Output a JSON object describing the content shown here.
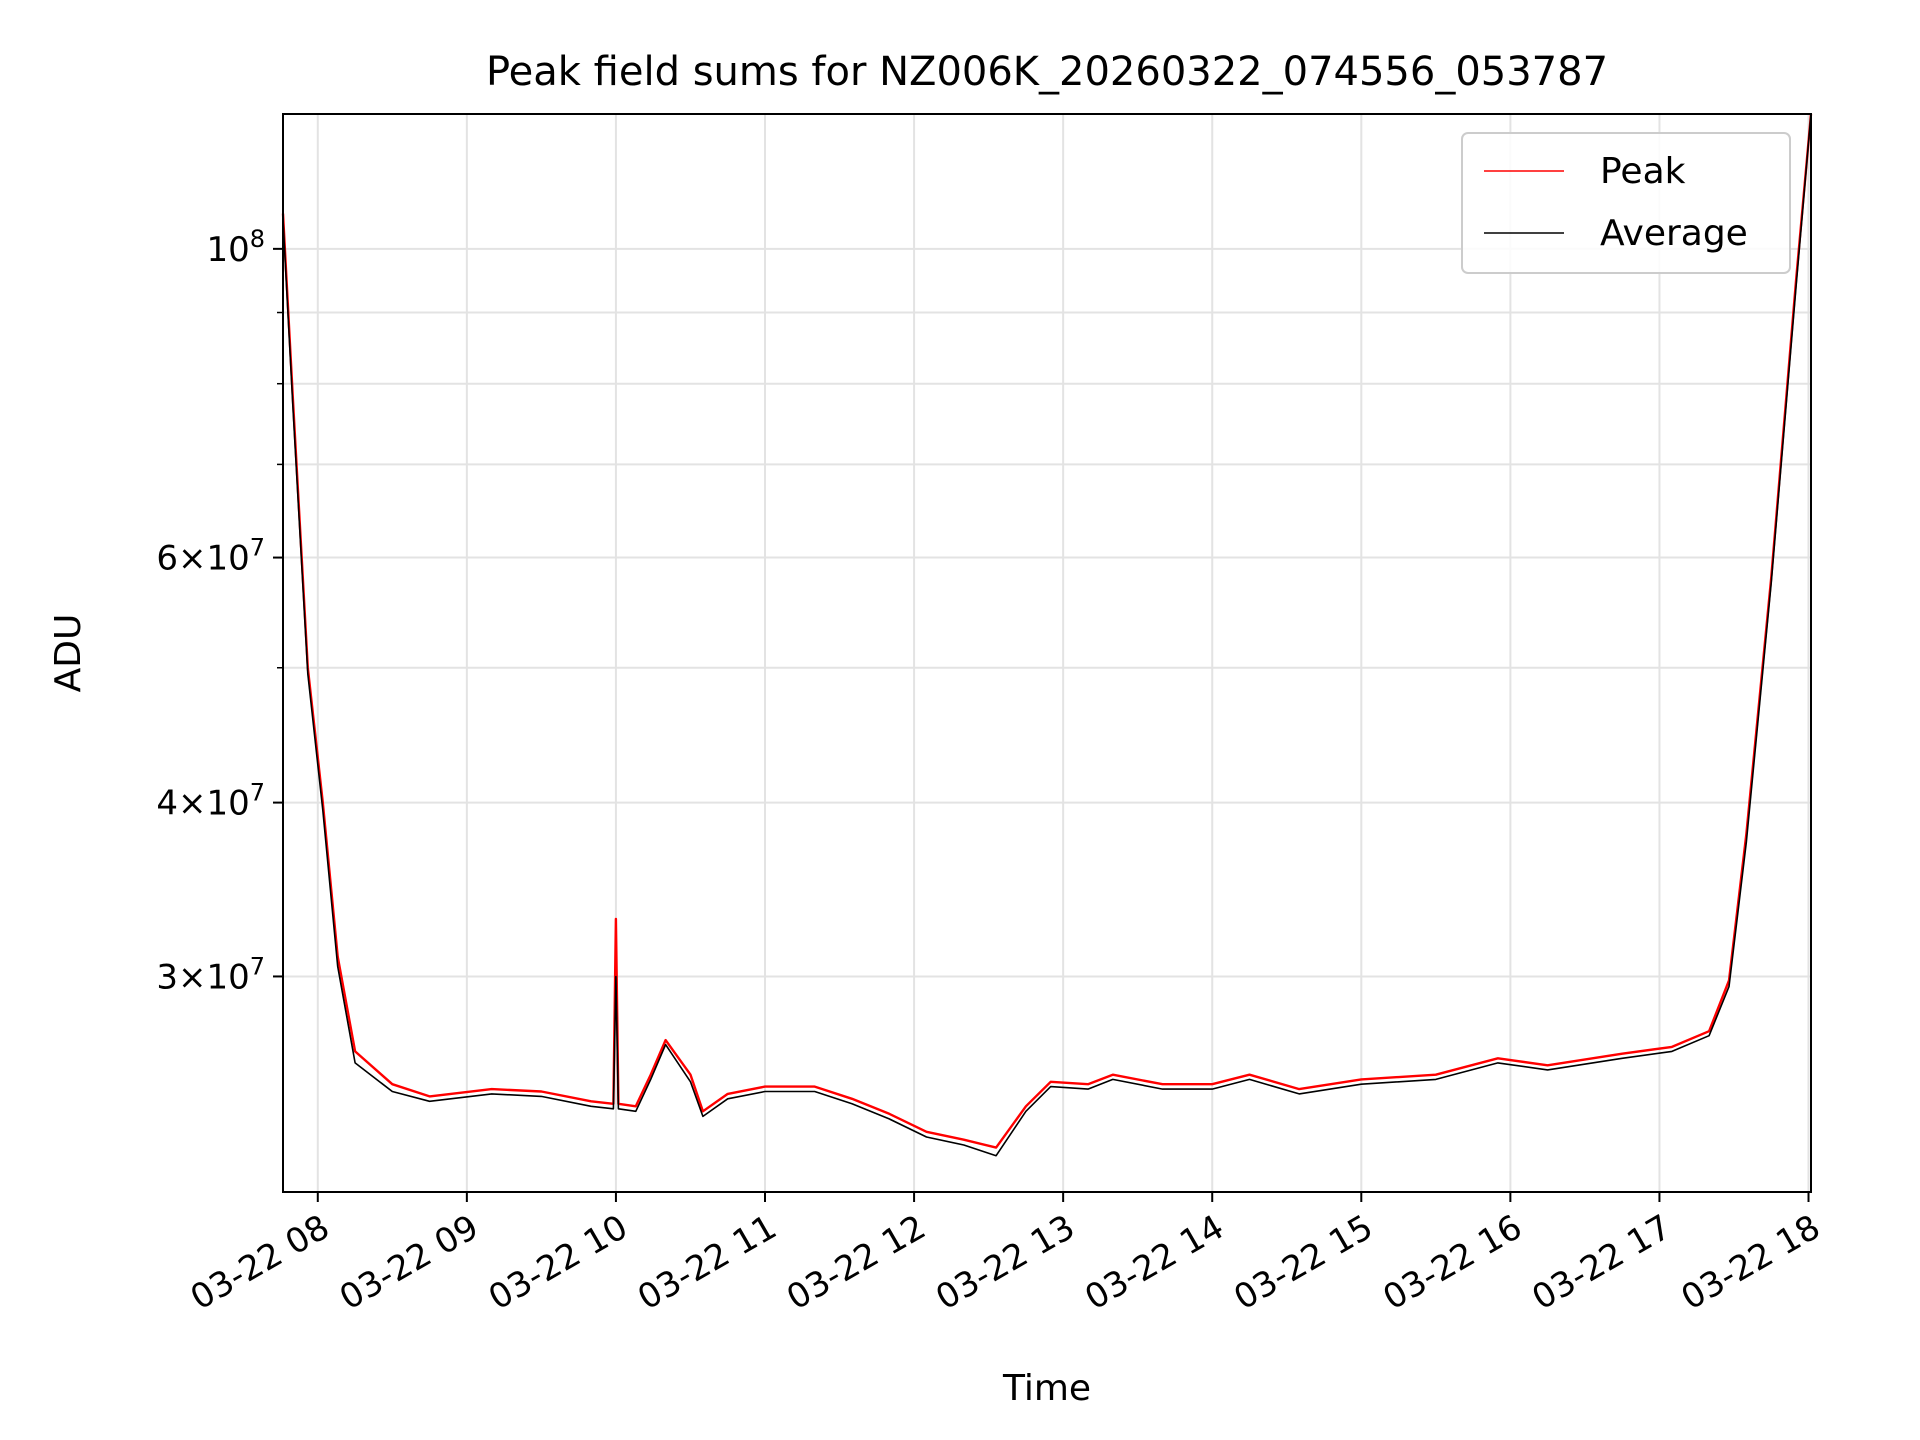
{
  "chart_data": {
    "type": "line",
    "title": "Peak field sums for NZ006K_20260322_074556_053787",
    "xlabel": "Time",
    "ylabel": "ADU",
    "y_scale": "log",
    "ylim": [
      21000000,
      125000000
    ],
    "xlim": [
      "2026-03-22 07:46",
      "2026-03-22 18:01"
    ],
    "grid": true,
    "legend_position": "top-right",
    "x_ticks": [
      {
        "t": "2026-03-22 08:00",
        "label": "03-22 08"
      },
      {
        "t": "2026-03-22 09:00",
        "label": "03-22 09"
      },
      {
        "t": "2026-03-22 10:00",
        "label": "03-22 10"
      },
      {
        "t": "2026-03-22 11:00",
        "label": "03-22 11"
      },
      {
        "t": "2026-03-22 12:00",
        "label": "03-22 12"
      },
      {
        "t": "2026-03-22 13:00",
        "label": "03-22 13"
      },
      {
        "t": "2026-03-22 14:00",
        "label": "03-22 14"
      },
      {
        "t": "2026-03-22 15:00",
        "label": "03-22 15"
      },
      {
        "t": "2026-03-22 16:00",
        "label": "03-22 16"
      },
      {
        "t": "2026-03-22 17:00",
        "label": "03-22 17"
      },
      {
        "t": "2026-03-22 18:00",
        "label": "03-22 18"
      }
    ],
    "y_ticks": [
      {
        "value": 100000000,
        "base": "10",
        "exp": "8"
      },
      {
        "value": 60000000,
        "mant": "6",
        "base": "10",
        "exp": "7"
      },
      {
        "value": 40000000,
        "mant": "4",
        "base": "10",
        "exp": "7"
      },
      {
        "value": 30000000,
        "mant": "3",
        "base": "10",
        "exp": "7"
      }
    ],
    "y_minor_ticks": [
      50000000,
      70000000,
      80000000,
      90000000
    ],
    "series": [
      {
        "name": "Peak",
        "color": "#ff0000",
        "points": [
          [
            "2026-03-22 07:46",
            106000000
          ],
          [
            "2026-03-22 07:50",
            78000000
          ],
          [
            "2026-03-22 07:56",
            50000000
          ],
          [
            "2026-03-22 08:02",
            40000000
          ],
          [
            "2026-03-22 08:08",
            31000000
          ],
          [
            "2026-03-22 08:15",
            26500000
          ],
          [
            "2026-03-22 08:30",
            25100000
          ],
          [
            "2026-03-22 08:45",
            24600000
          ],
          [
            "2026-03-22 09:10",
            24900000
          ],
          [
            "2026-03-22 09:30",
            24800000
          ],
          [
            "2026-03-22 09:50",
            24400000
          ],
          [
            "2026-03-22 09:59",
            24300000
          ],
          [
            "2026-03-22 10:00",
            33000000
          ],
          [
            "2026-03-22 10:01",
            24300000
          ],
          [
            "2026-03-22 10:08",
            24200000
          ],
          [
            "2026-03-22 10:14",
            25500000
          ],
          [
            "2026-03-22 10:20",
            27000000
          ],
          [
            "2026-03-22 10:30",
            25500000
          ],
          [
            "2026-03-22 10:35",
            24000000
          ],
          [
            "2026-03-22 10:45",
            24700000
          ],
          [
            "2026-03-22 11:00",
            25000000
          ],
          [
            "2026-03-22 11:20",
            25000000
          ],
          [
            "2026-03-22 11:35",
            24500000
          ],
          [
            "2026-03-22 11:50",
            23900000
          ],
          [
            "2026-03-22 12:05",
            23200000
          ],
          [
            "2026-03-22 12:20",
            22900000
          ],
          [
            "2026-03-22 12:33",
            22600000
          ],
          [
            "2026-03-22 12:45",
            24200000
          ],
          [
            "2026-03-22 12:55",
            25200000
          ],
          [
            "2026-03-22 13:10",
            25100000
          ],
          [
            "2026-03-22 13:20",
            25500000
          ],
          [
            "2026-03-22 13:40",
            25100000
          ],
          [
            "2026-03-22 14:00",
            25100000
          ],
          [
            "2026-03-22 14:15",
            25500000
          ],
          [
            "2026-03-22 14:35",
            24900000
          ],
          [
            "2026-03-22 15:00",
            25300000
          ],
          [
            "2026-03-22 15:30",
            25500000
          ],
          [
            "2026-03-22 15:55",
            26200000
          ],
          [
            "2026-03-22 16:15",
            25900000
          ],
          [
            "2026-03-22 16:45",
            26400000
          ],
          [
            "2026-03-22 17:05",
            26700000
          ],
          [
            "2026-03-22 17:20",
            27400000
          ],
          [
            "2026-03-22 17:28",
            29800000
          ],
          [
            "2026-03-22 17:35",
            38000000
          ],
          [
            "2026-03-22 17:45",
            58000000
          ],
          [
            "2026-03-22 17:55",
            95000000
          ],
          [
            "2026-03-22 18:01",
            125000000
          ]
        ]
      },
      {
        "name": "Average",
        "color": "#000000",
        "points": [
          [
            "2026-03-22 07:46",
            105000000
          ],
          [
            "2026-03-22 07:50",
            77000000
          ],
          [
            "2026-03-22 07:56",
            49500000
          ],
          [
            "2026-03-22 08:02",
            39500000
          ],
          [
            "2026-03-22 08:08",
            30500000
          ],
          [
            "2026-03-22 08:15",
            26000000
          ],
          [
            "2026-03-22 08:30",
            24800000
          ],
          [
            "2026-03-22 08:45",
            24400000
          ],
          [
            "2026-03-22 09:10",
            24700000
          ],
          [
            "2026-03-22 09:30",
            24600000
          ],
          [
            "2026-03-22 09:50",
            24200000
          ],
          [
            "2026-03-22 09:59",
            24100000
          ],
          [
            "2026-03-22 10:00",
            30000000
          ],
          [
            "2026-03-22 10:01",
            24100000
          ],
          [
            "2026-03-22 10:08",
            24000000
          ],
          [
            "2026-03-22 10:14",
            25300000
          ],
          [
            "2026-03-22 10:20",
            26800000
          ],
          [
            "2026-03-22 10:30",
            25200000
          ],
          [
            "2026-03-22 10:35",
            23800000
          ],
          [
            "2026-03-22 10:45",
            24500000
          ],
          [
            "2026-03-22 11:00",
            24800000
          ],
          [
            "2026-03-22 11:20",
            24800000
          ],
          [
            "2026-03-22 11:35",
            24300000
          ],
          [
            "2026-03-22 11:50",
            23700000
          ],
          [
            "2026-03-22 12:05",
            23000000
          ],
          [
            "2026-03-22 12:20",
            22700000
          ],
          [
            "2026-03-22 12:33",
            22300000
          ],
          [
            "2026-03-22 12:45",
            24000000
          ],
          [
            "2026-03-22 12:55",
            25000000
          ],
          [
            "2026-03-22 13:10",
            24900000
          ],
          [
            "2026-03-22 13:20",
            25300000
          ],
          [
            "2026-03-22 13:40",
            24900000
          ],
          [
            "2026-03-22 14:00",
            24900000
          ],
          [
            "2026-03-22 14:15",
            25300000
          ],
          [
            "2026-03-22 14:35",
            24700000
          ],
          [
            "2026-03-22 15:00",
            25100000
          ],
          [
            "2026-03-22 15:30",
            25300000
          ],
          [
            "2026-03-22 15:55",
            26000000
          ],
          [
            "2026-03-22 16:15",
            25700000
          ],
          [
            "2026-03-22 16:45",
            26200000
          ],
          [
            "2026-03-22 17:05",
            26500000
          ],
          [
            "2026-03-22 17:20",
            27200000
          ],
          [
            "2026-03-22 17:28",
            29500000
          ],
          [
            "2026-03-22 17:35",
            37500000
          ],
          [
            "2026-03-22 17:45",
            57500000
          ],
          [
            "2026-03-22 17:55",
            94000000
          ],
          [
            "2026-03-22 18:01",
            125000000
          ]
        ]
      }
    ]
  }
}
